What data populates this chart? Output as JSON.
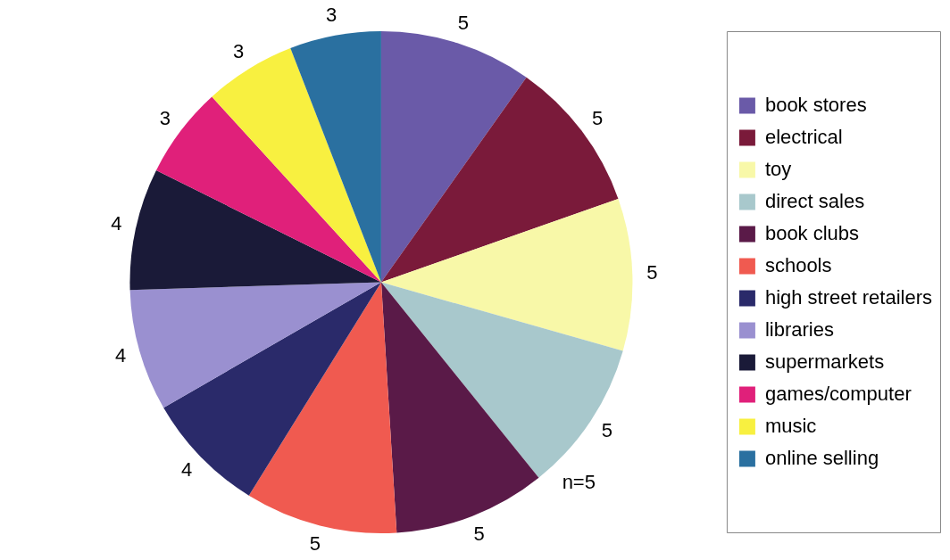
{
  "chart_data": {
    "type": "pie",
    "categories": [
      "book stores",
      "electrical",
      "toy",
      "direct sales",
      "book clubs",
      "schools",
      "high street retailers",
      "libraries",
      "supermarkets",
      "games/computer",
      "music",
      "online selling"
    ],
    "values": [
      5,
      5,
      5,
      5,
      5,
      5,
      4,
      4,
      4,
      3,
      3,
      3
    ],
    "colors": [
      "#6a5aa8",
      "#7a1a3a",
      "#f8f8a8",
      "#a8c8cc",
      "#5a1a48",
      "#f05a50",
      "#2a2a6a",
      "#9a90d0",
      "#1a1a38",
      "#e0207a",
      "#f8f040",
      "#2a70a0"
    ],
    "data_labels": true,
    "legend": "right",
    "annotations": [
      "n=5"
    ]
  }
}
